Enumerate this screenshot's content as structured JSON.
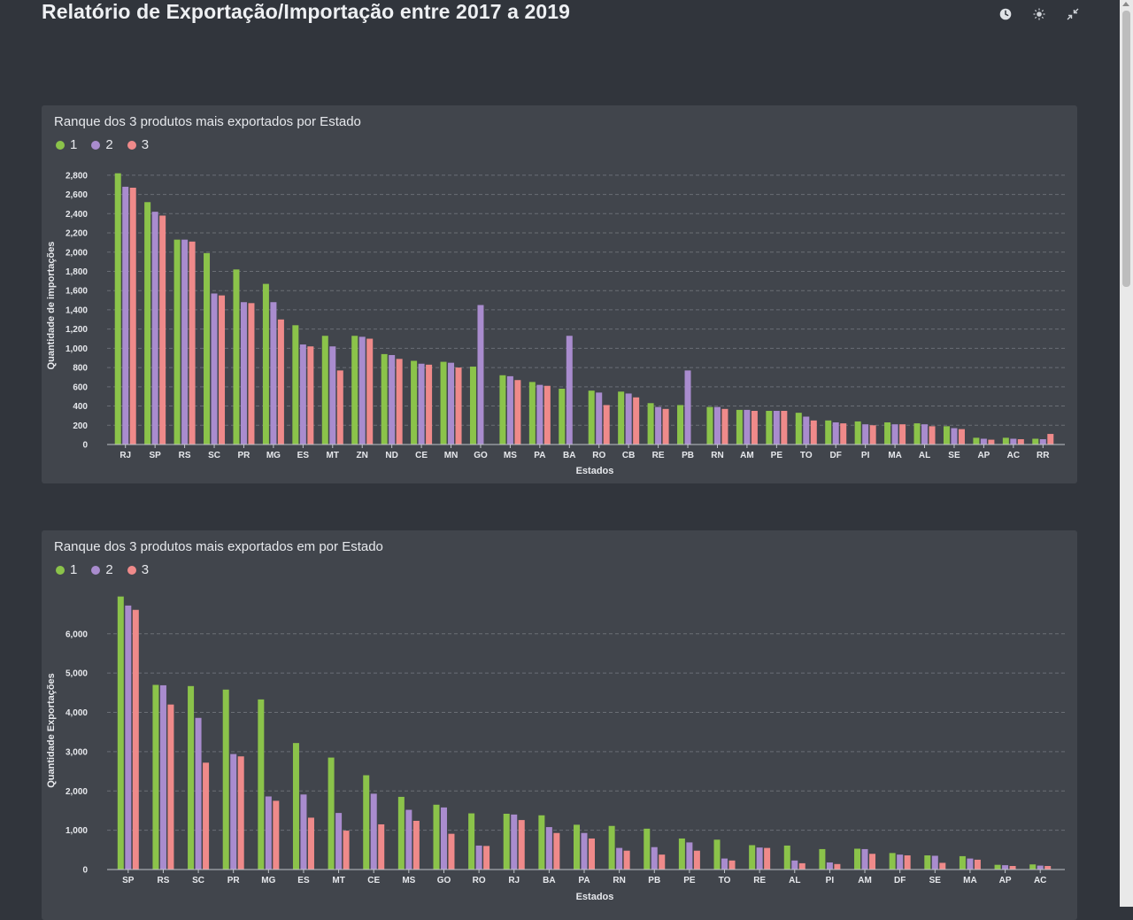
{
  "page": {
    "title": "Relatório de Exportação/Importação entre 2017 a 2019"
  },
  "toolbar": {
    "icons": [
      "clock-icon",
      "brightness-icon",
      "collapse-icon"
    ]
  },
  "colors": {
    "series1": "#8bc34a",
    "series2": "#a98cce",
    "series3": "#ef8a8a",
    "grid": "#6a6e75",
    "axis": "#bfc3c9"
  },
  "panels": [
    {
      "title": "Ranque dos 3 produtos mais exportados por Estado",
      "legend": [
        "1",
        "2",
        "3"
      ],
      "chart_data": {
        "type": "bar",
        "categories": [
          "RJ",
          "SP",
          "RS",
          "SC",
          "PR",
          "MG",
          "ES",
          "MT",
          "ZN",
          "ND",
          "CE",
          "MN",
          "GO",
          "MS",
          "PA",
          "BA",
          "RO",
          "CB",
          "RE",
          "PB",
          "RN",
          "AM",
          "PE",
          "TO",
          "DF",
          "PI",
          "MA",
          "AL",
          "SE",
          "AP",
          "AC",
          "RR"
        ],
        "series": [
          {
            "name": "1",
            "values": [
              2820,
              2520,
              2130,
              1990,
              1820,
              1670,
              1240,
              1130,
              1130,
              940,
              870,
              860,
              810,
              720,
              650,
              580,
              560,
              550,
              430,
              410,
              390,
              360,
              350,
              330,
              250,
              240,
              230,
              220,
              190,
              70,
              70,
              60
            ]
          },
          {
            "name": "2",
            "values": [
              2680,
              2420,
              2130,
              1570,
              1480,
              1480,
              1040,
              1020,
              1120,
              930,
              840,
              850,
              1450,
              710,
              620,
              1130,
              540,
              530,
              390,
              770,
              390,
              360,
              350,
              290,
              230,
              210,
              210,
              210,
              170,
              60,
              60,
              55
            ]
          },
          {
            "name": "3",
            "values": [
              2670,
              2380,
              2110,
              1550,
              1470,
              1300,
              1020,
              770,
              1100,
              890,
              830,
              800,
              0,
              670,
              610,
              0,
              410,
              490,
              370,
              0,
              370,
              350,
              350,
              250,
              220,
              200,
              210,
              190,
              160,
              50,
              55,
              110
            ]
          }
        ],
        "xlabel": "Estados",
        "ylabel": "Quantidade de importações",
        "ylim": [
          0,
          2900
        ],
        "yticks": [
          0,
          200,
          400,
          600,
          800,
          1000,
          1200,
          1400,
          1600,
          1800,
          2000,
          2200,
          2400,
          2600,
          2800
        ],
        "ytick_labels": [
          "0",
          "200",
          "400",
          "600",
          "800",
          "1,000",
          "1,200",
          "1,400",
          "1,600",
          "1,800",
          "2,000",
          "2,200",
          "2,400",
          "2,600",
          "2,800"
        ],
        "grid": true,
        "legend_position": "top-left"
      }
    },
    {
      "title": "Ranque dos 3 produtos mais exportados em por Estado",
      "legend": [
        "1",
        "2",
        "3"
      ],
      "chart_data": {
        "type": "bar",
        "categories": [
          "SP",
          "RS",
          "SC",
          "PR",
          "MG",
          "ES",
          "MT",
          "CE",
          "MS",
          "GO",
          "RO",
          "RJ",
          "BA",
          "PA",
          "RN",
          "PB",
          "PE",
          "TO",
          "RE",
          "AL",
          "PI",
          "AM",
          "DF",
          "SE",
          "MA",
          "AP",
          "AC"
        ],
        "series": [
          {
            "name": "1",
            "values": [
              6950,
              4700,
              4670,
              4580,
              4330,
              3220,
              2850,
              2400,
              1850,
              1650,
              1430,
              1420,
              1380,
              1140,
              1110,
              1040,
              790,
              760,
              620,
              610,
              520,
              530,
              420,
              360,
              340,
              120,
              130
            ]
          },
          {
            "name": "2",
            "values": [
              6720,
              4690,
              3860,
              2940,
              1860,
              1910,
              1440,
              1930,
              1520,
              1580,
              610,
              1400,
              1080,
              930,
              550,
              570,
              690,
              280,
              560,
              230,
              180,
              520,
              380,
              350,
              280,
              110,
              100
            ]
          },
          {
            "name": "3",
            "values": [
              6610,
              4200,
              2720,
              2880,
              1750,
              1320,
              990,
              1150,
              1240,
              910,
              600,
              1260,
              930,
              790,
              480,
              380,
              480,
              230,
              550,
              160,
              140,
              400,
              360,
              170,
              250,
              90,
              90
            ]
          }
        ],
        "xlabel": "Estados",
        "ylabel": "Quantidade Exportações",
        "ylim": [
          0,
          7100
        ],
        "yticks": [
          0,
          1000,
          2000,
          3000,
          4000,
          5000,
          6000
        ],
        "ytick_labels": [
          "0",
          "1,000",
          "2,000",
          "3,000",
          "4,000",
          "5,000",
          "6,000"
        ],
        "grid": true,
        "legend_position": "top-left"
      }
    }
  ]
}
